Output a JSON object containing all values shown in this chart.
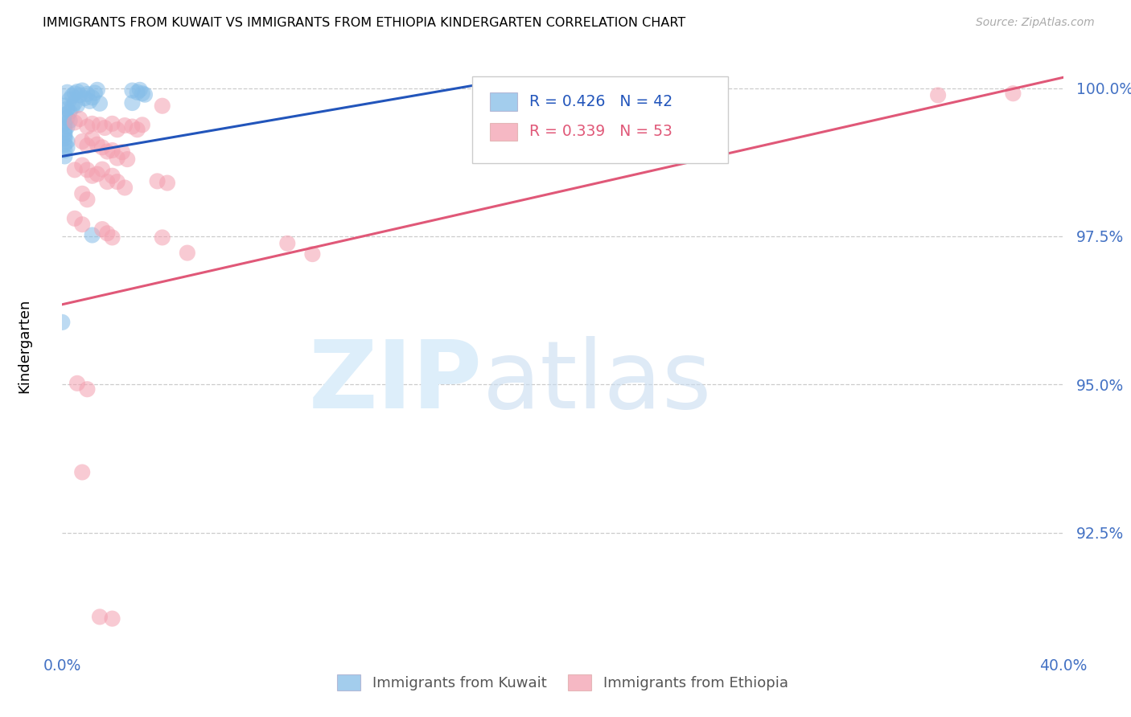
{
  "title": "IMMIGRANTS FROM KUWAIT VS IMMIGRANTS FROM ETHIOPIA KINDERGARTEN CORRELATION CHART",
  "source": "Source: ZipAtlas.com",
  "ylabel": "Kindergarten",
  "ytick_labels": [
    "100.0%",
    "97.5%",
    "95.0%",
    "92.5%"
  ],
  "ytick_values": [
    1.0,
    0.975,
    0.95,
    0.925
  ],
  "xlim": [
    0.0,
    0.4
  ],
  "ylim": [
    0.906,
    1.007
  ],
  "legend_r1": "R = 0.426",
  "legend_n1": "N = 42",
  "legend_r2": "R = 0.339",
  "legend_n2": "N = 53",
  "color_kuwait": "#85bde8",
  "color_ethiopia": "#f4a0b0",
  "color_line_kuwait": "#2255bb",
  "color_line_ethiopia": "#e05878",
  "color_yticks": "#4472c4",
  "kuwait_points": [
    [
      0.002,
      0.9993
    ],
    [
      0.004,
      0.9987
    ],
    [
      0.005,
      0.9991
    ],
    [
      0.006,
      0.9994
    ],
    [
      0.007,
      0.9988
    ],
    [
      0.008,
      0.9996
    ],
    [
      0.009,
      0.9983
    ],
    [
      0.01,
      0.999
    ],
    [
      0.011,
      0.9978
    ],
    [
      0.012,
      0.9984
    ],
    [
      0.013,
      0.9992
    ],
    [
      0.014,
      0.9997
    ],
    [
      0.003,
      0.9981
    ],
    [
      0.005,
      0.9975
    ],
    [
      0.001,
      0.997
    ],
    [
      0.002,
      0.9965
    ],
    [
      0.003,
      0.996
    ],
    [
      0.004,
      0.9968
    ],
    [
      0.001,
      0.9955
    ],
    [
      0.002,
      0.995
    ],
    [
      0.003,
      0.9945
    ],
    [
      0.001,
      0.994
    ],
    [
      0.002,
      0.9935
    ],
    [
      0.001,
      0.993
    ],
    [
      0.001,
      0.9925
    ],
    [
      0.001,
      0.992
    ],
    [
      0.001,
      0.9915
    ],
    [
      0.002,
      0.991
    ],
    [
      0.001,
      0.9905
    ],
    [
      0.002,
      0.99
    ],
    [
      0.001,
      0.9895
    ],
    [
      0.001,
      0.9885
    ],
    [
      0.028,
      0.9996
    ],
    [
      0.03,
      0.9993
    ],
    [
      0.031,
      0.9997
    ],
    [
      0.032,
      0.9991
    ],
    [
      0.033,
      0.9989
    ],
    [
      0.012,
      0.9752
    ],
    [
      0.0,
      0.9605
    ],
    [
      0.028,
      0.9975
    ],
    [
      0.006,
      0.9971
    ],
    [
      0.015,
      0.9974
    ]
  ],
  "ethiopia_points": [
    [
      0.005,
      0.9942
    ],
    [
      0.007,
      0.9948
    ],
    [
      0.01,
      0.9935
    ],
    [
      0.012,
      0.994
    ],
    [
      0.015,
      0.9938
    ],
    [
      0.017,
      0.9933
    ],
    [
      0.02,
      0.994
    ],
    [
      0.022,
      0.993
    ],
    [
      0.025,
      0.9937
    ],
    [
      0.028,
      0.9935
    ],
    [
      0.03,
      0.993
    ],
    [
      0.032,
      0.9938
    ],
    [
      0.008,
      0.991
    ],
    [
      0.01,
      0.9903
    ],
    [
      0.012,
      0.9915
    ],
    [
      0.014,
      0.9905
    ],
    [
      0.016,
      0.99
    ],
    [
      0.018,
      0.9893
    ],
    [
      0.02,
      0.9895
    ],
    [
      0.022,
      0.9882
    ],
    [
      0.024,
      0.9892
    ],
    [
      0.026,
      0.988
    ],
    [
      0.005,
      0.9862
    ],
    [
      0.008,
      0.987
    ],
    [
      0.01,
      0.9862
    ],
    [
      0.012,
      0.9852
    ],
    [
      0.014,
      0.9855
    ],
    [
      0.016,
      0.9863
    ],
    [
      0.018,
      0.9842
    ],
    [
      0.02,
      0.9852
    ],
    [
      0.022,
      0.9842
    ],
    [
      0.025,
      0.9832
    ],
    [
      0.008,
      0.9822
    ],
    [
      0.01,
      0.9812
    ],
    [
      0.005,
      0.978
    ],
    [
      0.008,
      0.977
    ],
    [
      0.016,
      0.9762
    ],
    [
      0.018,
      0.9755
    ],
    [
      0.02,
      0.9748
    ],
    [
      0.04,
      0.9748
    ],
    [
      0.006,
      0.9502
    ],
    [
      0.01,
      0.9492
    ],
    [
      0.008,
      0.9352
    ],
    [
      0.015,
      0.9108
    ],
    [
      0.02,
      0.9105
    ],
    [
      0.35,
      0.9988
    ],
    [
      0.38,
      0.9991
    ],
    [
      0.04,
      0.997
    ],
    [
      0.038,
      0.9843
    ],
    [
      0.042,
      0.984
    ],
    [
      0.05,
      0.9722
    ],
    [
      0.09,
      0.9738
    ],
    [
      0.1,
      0.972
    ]
  ],
  "kuwait_line_x": [
    0.0,
    0.165
  ],
  "kuwait_line_y": [
    0.9885,
    1.0005
  ],
  "ethiopia_line_x": [
    0.0,
    0.4
  ],
  "ethiopia_line_y": [
    0.9635,
    1.0018
  ]
}
